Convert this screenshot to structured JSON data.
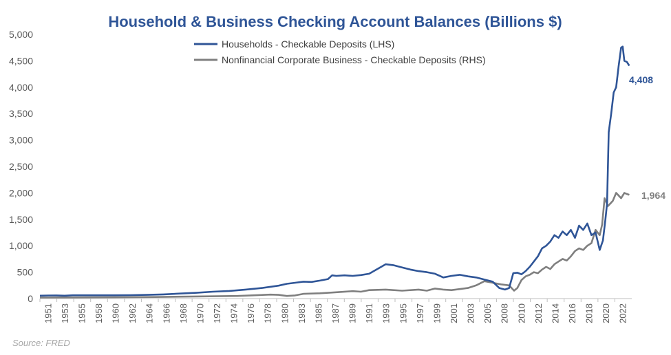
{
  "source_label": "Source: FRED",
  "chart_data": {
    "type": "line",
    "title": "Household & Business Checking Account Balances (Billions $)",
    "xlabel": "",
    "ylabel": "",
    "ylim": [
      0,
      5000
    ],
    "y_ticks": [
      "0",
      "500",
      "1,000",
      "1,500",
      "2,000",
      "2,500",
      "3,000",
      "3,500",
      "4,000",
      "4,500",
      "5,000"
    ],
    "x_ticks": [
      "1951",
      "1953",
      "1955",
      "1958",
      "1960",
      "1962",
      "1964",
      "1966",
      "1968",
      "1970",
      "1972",
      "1974",
      "1976",
      "1978",
      "1980",
      "1983",
      "1985",
      "1987",
      "1989",
      "1991",
      "1993",
      "1995",
      "1997",
      "1999",
      "2001",
      "2003",
      "2005",
      "2008",
      "2010",
      "2012",
      "2014",
      "2016",
      "2018",
      "2020",
      "2022"
    ],
    "xlim": [
      1951,
      2022.9
    ],
    "grid": false,
    "legend_position": "top-center",
    "series": [
      {
        "name": "Households - Checkable Deposits (LHS)",
        "color": "#2f5597",
        "end_label": "4,408",
        "points": [
          [
            1951,
            55
          ],
          [
            1952,
            58
          ],
          [
            1953,
            60
          ],
          [
            1954,
            55
          ],
          [
            1955,
            62
          ],
          [
            1957,
            62
          ],
          [
            1960,
            63
          ],
          [
            1962,
            65
          ],
          [
            1964,
            70
          ],
          [
            1966,
            80
          ],
          [
            1968,
            95
          ],
          [
            1970,
            110
          ],
          [
            1972,
            130
          ],
          [
            1974,
            145
          ],
          [
            1976,
            170
          ],
          [
            1978,
            200
          ],
          [
            1980,
            245
          ],
          [
            1981,
            280
          ],
          [
            1982,
            300
          ],
          [
            1983,
            320
          ],
          [
            1984,
            315
          ],
          [
            1985,
            340
          ],
          [
            1986,
            370
          ],
          [
            1986.5,
            440
          ],
          [
            1987,
            430
          ],
          [
            1988,
            440
          ],
          [
            1989,
            430
          ],
          [
            1990,
            445
          ],
          [
            1991,
            470
          ],
          [
            1992,
            560
          ],
          [
            1993,
            650
          ],
          [
            1994,
            630
          ],
          [
            1995,
            590
          ],
          [
            1996,
            550
          ],
          [
            1997,
            520
          ],
          [
            1998,
            500
          ],
          [
            1999,
            470
          ],
          [
            2000,
            400
          ],
          [
            2001,
            430
          ],
          [
            2002,
            450
          ],
          [
            2003,
            420
          ],
          [
            2004,
            400
          ],
          [
            2005,
            360
          ],
          [
            2006,
            320
          ],
          [
            2006.8,
            200
          ],
          [
            2007.5,
            170
          ],
          [
            2008,
            200
          ],
          [
            2008.5,
            480
          ],
          [
            2009,
            490
          ],
          [
            2009.5,
            460
          ],
          [
            2010,
            520
          ],
          [
            2010.5,
            600
          ],
          [
            2011,
            700
          ],
          [
            2011.5,
            800
          ],
          [
            2012,
            950
          ],
          [
            2012.5,
            1000
          ],
          [
            2013,
            1080
          ],
          [
            2013.5,
            1200
          ],
          [
            2014,
            1150
          ],
          [
            2014.5,
            1270
          ],
          [
            2015,
            1200
          ],
          [
            2015.5,
            1300
          ],
          [
            2016,
            1150
          ],
          [
            2016.5,
            1380
          ],
          [
            2017,
            1300
          ],
          [
            2017.5,
            1420
          ],
          [
            2018,
            1200
          ],
          [
            2018.5,
            1250
          ],
          [
            2019,
            920
          ],
          [
            2019.4,
            1100
          ],
          [
            2019.7,
            1500
          ],
          [
            2019.9,
            1800
          ],
          [
            2020.1,
            3150
          ],
          [
            2020.4,
            3500
          ],
          [
            2020.7,
            3900
          ],
          [
            2021,
            4000
          ],
          [
            2021.3,
            4400
          ],
          [
            2021.6,
            4750
          ],
          [
            2021.8,
            4770
          ],
          [
            2022,
            4500
          ],
          [
            2022.3,
            4480
          ],
          [
            2022.6,
            4408
          ]
        ]
      },
      {
        "name": "Nonfinancial Corporate Business - Checkable Deposits (RHS)",
        "color": "#7f7f7f",
        "end_label": "1,964",
        "points": [
          [
            1951,
            20
          ],
          [
            1955,
            22
          ],
          [
            1960,
            25
          ],
          [
            1965,
            30
          ],
          [
            1970,
            40
          ],
          [
            1975,
            50
          ],
          [
            1979,
            75
          ],
          [
            1980,
            70
          ],
          [
            1981,
            50
          ],
          [
            1982,
            60
          ],
          [
            1983,
            90
          ],
          [
            1985,
            100
          ],
          [
            1987,
            120
          ],
          [
            1989,
            140
          ],
          [
            1990,
            130
          ],
          [
            1991,
            160
          ],
          [
            1993,
            170
          ],
          [
            1995,
            150
          ],
          [
            1997,
            170
          ],
          [
            1998,
            150
          ],
          [
            1999,
            190
          ],
          [
            2000,
            170
          ],
          [
            2001,
            160
          ],
          [
            2002,
            180
          ],
          [
            2003,
            200
          ],
          [
            2004,
            250
          ],
          [
            2005,
            330
          ],
          [
            2006,
            300
          ],
          [
            2007,
            270
          ],
          [
            2008,
            250
          ],
          [
            2008.6,
            150
          ],
          [
            2009,
            200
          ],
          [
            2009.5,
            350
          ],
          [
            2010,
            420
          ],
          [
            2010.5,
            450
          ],
          [
            2011,
            500
          ],
          [
            2011.5,
            480
          ],
          [
            2012,
            550
          ],
          [
            2012.5,
            600
          ],
          [
            2013,
            560
          ],
          [
            2013.5,
            650
          ],
          [
            2014,
            700
          ],
          [
            2014.5,
            750
          ],
          [
            2015,
            720
          ],
          [
            2015.5,
            800
          ],
          [
            2016,
            900
          ],
          [
            2016.5,
            950
          ],
          [
            2017,
            920
          ],
          [
            2017.5,
            1000
          ],
          [
            2018,
            1050
          ],
          [
            2018.5,
            1300
          ],
          [
            2019,
            1200
          ],
          [
            2019.3,
            1400
          ],
          [
            2019.6,
            1900
          ],
          [
            2020,
            1750
          ],
          [
            2020.3,
            1800
          ],
          [
            2020.6,
            1850
          ],
          [
            2021,
            2000
          ],
          [
            2021.3,
            1950
          ],
          [
            2021.6,
            1900
          ],
          [
            2022,
            2000
          ],
          [
            2022.3,
            1980
          ],
          [
            2022.6,
            1964
          ]
        ]
      }
    ]
  }
}
